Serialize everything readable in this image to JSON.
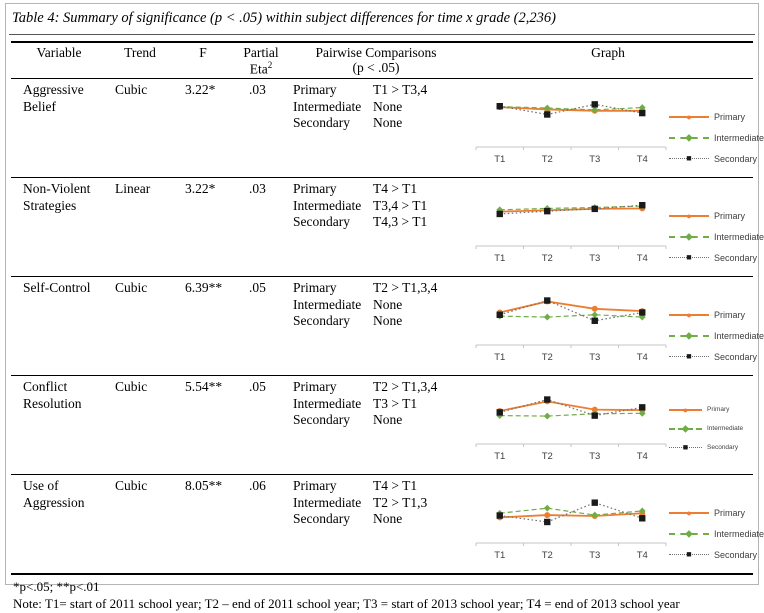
{
  "page": {
    "title": "Table 4: Summary of significance (p < .05) within subject differences for time x grade (2,236)"
  },
  "table": {
    "headers": {
      "variable": "Variable",
      "trend": "Trend",
      "f": "F",
      "partial_line1": "Partial",
      "partial_line2": "Eta",
      "partial_sup": "2",
      "pairwise_line1": "Pairwise Comparisons",
      "pairwise_line2": "(p < .05)",
      "graph": "Graph"
    },
    "rows": [
      {
        "variable": "Aggressive Belief",
        "trend": "Cubic",
        "f": "3.22*",
        "partial_eta": ".03",
        "pairwise": [
          {
            "grade": "Primary",
            "comparison": "T1 > T3,4"
          },
          {
            "grade": "Intermediate",
            "comparison": "None"
          },
          {
            "grade": "Secondary",
            "comparison": "None"
          }
        ]
      },
      {
        "variable": "Non-Violent Strategies",
        "trend": "Linear",
        "f": "3.22*",
        "partial_eta": ".03",
        "pairwise": [
          {
            "grade": "Primary",
            "comparison": "T4 > T1"
          },
          {
            "grade": "Intermediate",
            "comparison": "T3,4 > T1"
          },
          {
            "grade": "Secondary",
            "comparison": "T4,3 > T1"
          }
        ]
      },
      {
        "variable": "Self-Control",
        "trend": "Cubic",
        "f": "6.39**",
        "partial_eta": ".05",
        "pairwise": [
          {
            "grade": "Primary",
            "comparison": "T2 > T1,3,4"
          },
          {
            "grade": "Intermediate",
            "comparison": "None"
          },
          {
            "grade": "Secondary",
            "comparison": "None"
          }
        ]
      },
      {
        "variable": "Conflict Resolution",
        "trend": "Cubic",
        "f": "5.54**",
        "partial_eta": ".05",
        "pairwise": [
          {
            "grade": "Primary",
            "comparison": "T2 > T1,3,4"
          },
          {
            "grade": "Intermediate",
            "comparison": "T3 > T1"
          },
          {
            "grade": "Secondary",
            "comparison": "None"
          }
        ]
      },
      {
        "variable": "Use of Aggression",
        "trend": "Cubic",
        "f": "8.05**",
        "partial_eta": ".06",
        "pairwise": [
          {
            "grade": "Primary",
            "comparison": "T4 > T1"
          },
          {
            "grade": "Intermediate",
            "comparison": "T2 > T1,3"
          },
          {
            "grade": "Secondary",
            "comparison": "None"
          }
        ]
      }
    ]
  },
  "footnotes": {
    "significance": "*p<.05; **p<.01",
    "note": "Note: T1= start of 2011 school year; T2 – end of 2011 school year; T3 = start of 2013 school year; T4 = end of 2013 school year"
  },
  "colors": {
    "primary": "#ED7D31",
    "intermediate": "#70AD47",
    "secondary": "#1A1A1A",
    "secondary_line": "#707070",
    "axis": "#C6C6C6",
    "axis_label": "#404040",
    "rule": "#000000",
    "frame": "#B5B5B5"
  },
  "series_styles": [
    {
      "name": "Primary",
      "color": "#ED7D31",
      "line": "solid",
      "marker": "circle"
    },
    {
      "name": "Intermediate",
      "color": "#70AD47",
      "line": "dashed",
      "marker": "diamond"
    },
    {
      "name": "Secondary",
      "color": "#1A1A1A",
      "line": "dotted",
      "marker": "square"
    }
  ],
  "chart_data": [
    {
      "type": "line",
      "title": "Aggressive Belief over time by grade",
      "categories": [
        "T1",
        "T2",
        "T3",
        "T4"
      ],
      "series": [
        {
          "name": "Primary",
          "values": [
            0.78,
            0.73,
            0.7,
            0.7
          ]
        },
        {
          "name": "Intermediate",
          "values": [
            0.79,
            0.76,
            0.72,
            0.77
          ]
        },
        {
          "name": "Secondary",
          "values": [
            0.8,
            0.62,
            0.84,
            0.65
          ]
        }
      ],
      "xlabel": "",
      "ylabel": "",
      "y_axis": "hidden (values estimated on relative 0-1 scale)",
      "legend_position": "right",
      "legend_size": "normal",
      "grid": false
    },
    {
      "type": "line",
      "title": "Non-Violent Strategies over time by grade",
      "categories": [
        "T1",
        "T2",
        "T3",
        "T4"
      ],
      "series": [
        {
          "name": "Primary",
          "values": [
            0.66,
            0.69,
            0.72,
            0.73
          ]
        },
        {
          "name": "Intermediate",
          "values": [
            0.7,
            0.73,
            0.75,
            0.78
          ]
        },
        {
          "name": "Secondary",
          "values": [
            0.61,
            0.67,
            0.72,
            0.8
          ]
        }
      ],
      "xlabel": "",
      "ylabel": "",
      "y_axis": "hidden (values estimated on relative 0-1 scale)",
      "legend_position": "right",
      "legend_size": "normal",
      "grid": false
    },
    {
      "type": "line",
      "title": "Self-Control over time by grade",
      "categories": [
        "T1",
        "T2",
        "T3",
        "T4"
      ],
      "series": [
        {
          "name": "Primary",
          "values": [
            0.62,
            0.86,
            0.7,
            0.65
          ]
        },
        {
          "name": "Intermediate",
          "values": [
            0.54,
            0.52,
            0.57,
            0.52
          ]
        },
        {
          "name": "Secondary",
          "values": [
            0.57,
            0.88,
            0.44,
            0.62
          ]
        }
      ],
      "xlabel": "",
      "ylabel": "",
      "y_axis": "hidden (values estimated on relative 0-1 scale)",
      "legend_position": "right",
      "legend_size": "normal",
      "grid": false
    },
    {
      "type": "line",
      "title": "Conflict Resolution over time by grade",
      "categories": [
        "T1",
        "T2",
        "T3",
        "T4"
      ],
      "series": [
        {
          "name": "Primary",
          "values": [
            0.63,
            0.84,
            0.66,
            0.65
          ]
        },
        {
          "name": "Intermediate",
          "values": [
            0.53,
            0.52,
            0.57,
            0.58
          ]
        },
        {
          "name": "Secondary",
          "values": [
            0.6,
            0.88,
            0.53,
            0.71
          ]
        }
      ],
      "xlabel": "",
      "ylabel": "",
      "y_axis": "hidden (values estimated on relative 0-1 scale)",
      "legend_position": "right",
      "legend_size": "small",
      "grid": false
    },
    {
      "type": "line",
      "title": "Use of Aggression over time by grade",
      "categories": [
        "T1",
        "T2",
        "T3",
        "T4"
      ],
      "series": [
        {
          "name": "Primary",
          "values": [
            0.47,
            0.52,
            0.5,
            0.56
          ]
        },
        {
          "name": "Intermediate",
          "values": [
            0.56,
            0.67,
            0.52,
            0.61
          ]
        },
        {
          "name": "Secondary",
          "values": [
            0.51,
            0.37,
            0.79,
            0.45
          ]
        }
      ],
      "xlabel": "",
      "ylabel": "",
      "y_axis": "hidden (values estimated on relative 0-1 scale)",
      "legend_position": "right",
      "legend_size": "normal",
      "grid": false
    }
  ]
}
